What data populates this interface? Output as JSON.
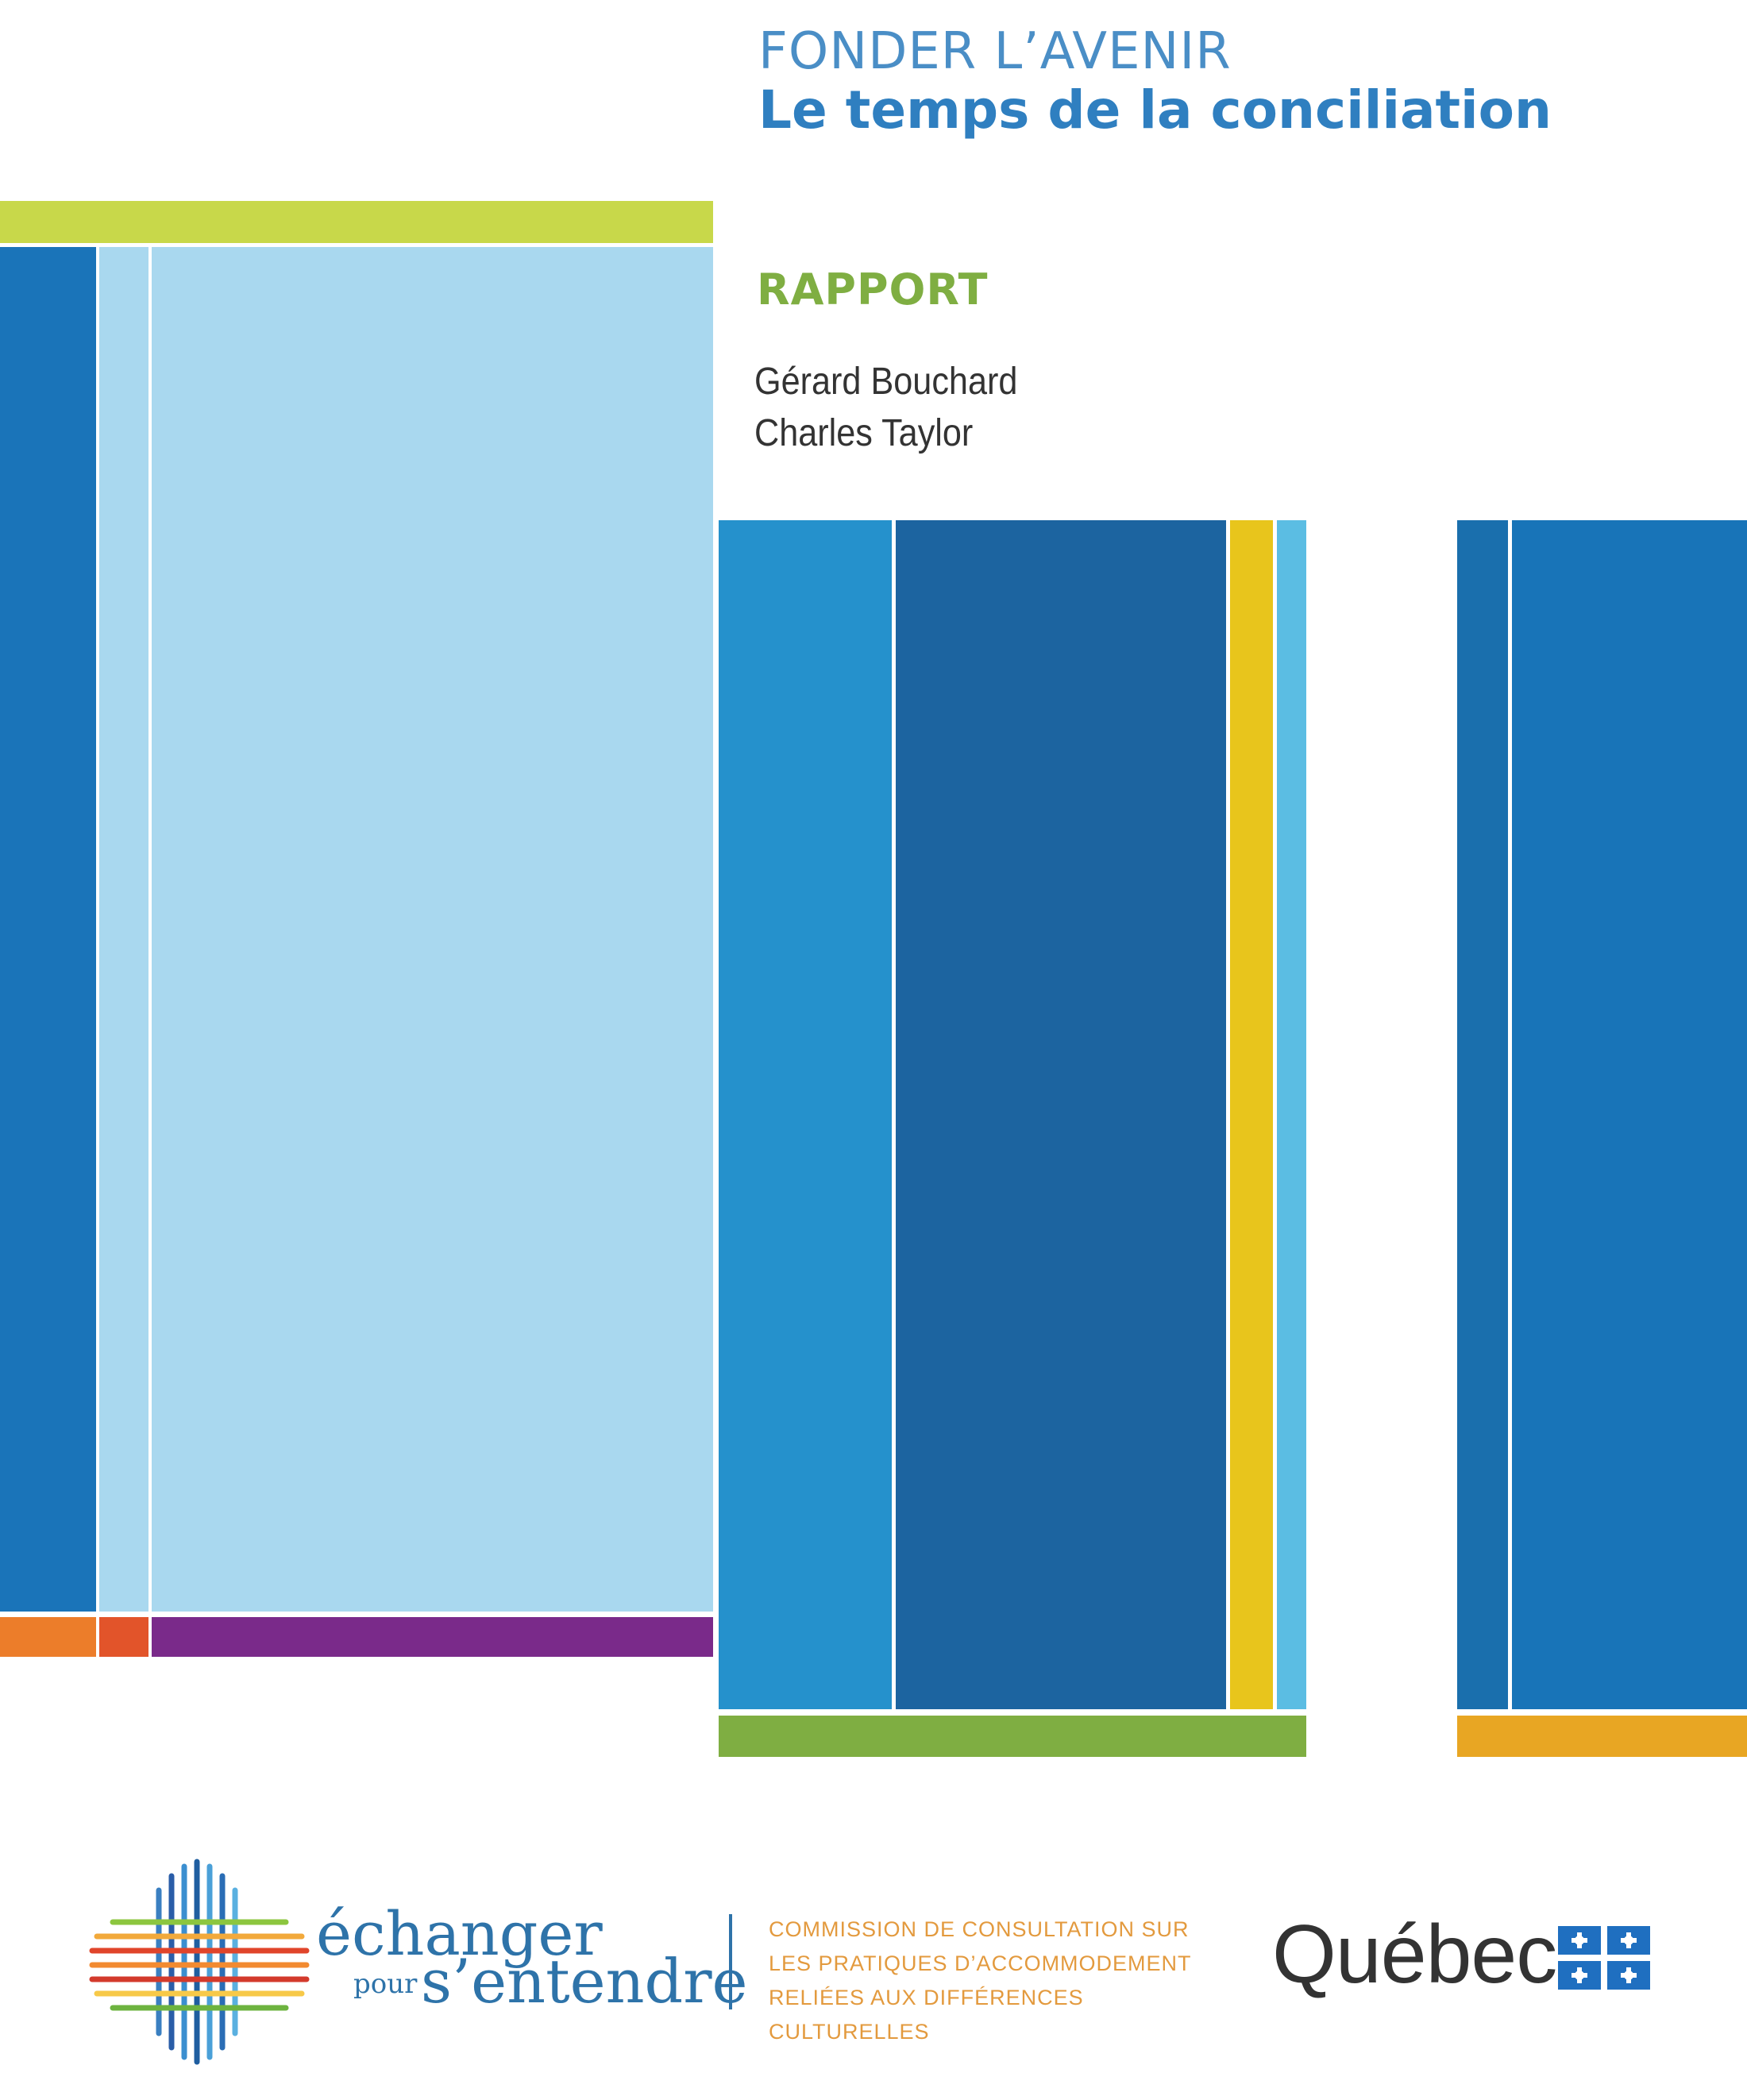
{
  "cover": {
    "supertitle": "FONDER L’AVENIR",
    "title": "Le temps de la conciliation",
    "type": "RAPPORT",
    "authors": [
      "Gérard Bouchard",
      "Charles Taylor"
    ]
  },
  "footer": {
    "logo_line1": "échanger",
    "logo_pour": "pour",
    "logo_line2": "s’entendre",
    "commission_lines": [
      "COMMISSION DE CONSULTATION SUR",
      "LES PRATIQUES D’ACCOMMODEMENT",
      "RELIÉES AUX DIFFÉRENCES CULTURELLES"
    ],
    "quebec": "Québec"
  },
  "colors": {
    "blue_dark": "#1f6aa5",
    "blue_mid": "#2591cc",
    "blue_light": "#a9d8ef",
    "green_lime": "#c8d84a",
    "green": "#7fae42",
    "orange": "#ec7d2a",
    "purple": "#7a2a8a",
    "yellow": "#e8c51c",
    "gold": "#e8a623"
  }
}
